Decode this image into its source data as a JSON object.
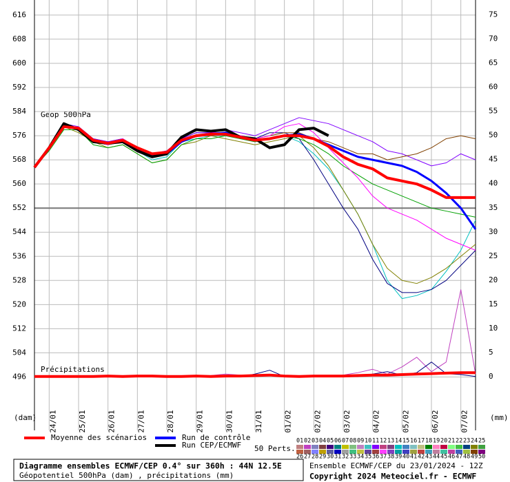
{
  "chart_data": {
    "type": "line",
    "title": "Diagramme ensembles ECMWF/CEP 0.4° sur 360h : 44N 12.5E",
    "subtitle": "Géopotentiel 500hPa (dam) , précipitations (mm)",
    "run_info": "Ensemble ECMWF/CEP du 23/01/2024 - 12Z",
    "copyright": "Copyright 2024 Meteociel.fr - ECMWF",
    "geop_label": "Geop 500hPa",
    "precip_label": "Précipitations",
    "y_label": "(dam)",
    "y2_label": "(mm)",
    "x": [
      0,
      12,
      24,
      36,
      48,
      60,
      72,
      84,
      96,
      108,
      120,
      132,
      144,
      156,
      168,
      180,
      192,
      204,
      216,
      228,
      240,
      252,
      264,
      276,
      288,
      300,
      312,
      324,
      336,
      348,
      360
    ],
    "xlim": [
      0,
      360
    ],
    "xticks": [
      {
        "value": 12,
        "label": "24/01"
      },
      {
        "value": 36,
        "label": "25/01"
      },
      {
        "value": 60,
        "label": "26/01"
      },
      {
        "value": 84,
        "label": "27/01"
      },
      {
        "value": 108,
        "label": "28/01"
      },
      {
        "value": 132,
        "label": "29/01"
      },
      {
        "value": 156,
        "label": "30/01"
      },
      {
        "value": 180,
        "label": "31/01"
      },
      {
        "value": 204,
        "label": "01/02"
      },
      {
        "value": 228,
        "label": "02/02"
      },
      {
        "value": 252,
        "label": "03/02"
      },
      {
        "value": 276,
        "label": "04/02"
      },
      {
        "value": 300,
        "label": "05/02"
      },
      {
        "value": 324,
        "label": "06/02"
      },
      {
        "value": 348,
        "label": "07/02"
      }
    ],
    "ylim": [
      484,
      621
    ],
    "yticks": [
      496,
      504,
      512,
      520,
      528,
      536,
      544,
      552,
      560,
      568,
      576,
      584,
      592,
      600,
      608,
      616
    ],
    "y2lim": [
      -7.6,
      78.1
    ],
    "y2ticks": [
      0,
      5,
      10,
      15,
      20,
      25,
      30,
      35,
      40,
      45,
      50,
      55,
      60,
      65,
      70,
      75
    ],
    "reference_line": 552,
    "grid": true,
    "series": [
      {
        "color": "#00c0c0",
        "values": [
          565.5,
          572,
          579,
          578,
          574,
          573,
          574,
          571,
          568,
          569,
          574,
          575,
          576,
          576,
          575,
          574,
          575,
          576,
          574,
          570,
          565,
          558,
          550,
          540,
          528,
          522,
          523,
          525,
          531,
          538,
          548
        ]
      },
      {
        "color": "#000080",
        "values": [
          565.5,
          572,
          580,
          578,
          575,
          574,
          575,
          572,
          569,
          570,
          575,
          577,
          577,
          577,
          576,
          575,
          577,
          577,
          575,
          568,
          560,
          552,
          545,
          535,
          527,
          524,
          524,
          525,
          528,
          533,
          538
        ]
      },
      {
        "color": "#808000",
        "values": [
          565.5,
          572,
          579,
          577,
          574,
          572,
          573,
          570,
          567,
          568,
          573,
          574,
          576,
          575,
          574,
          573,
          574,
          575,
          576,
          572,
          566,
          558,
          550,
          540,
          532,
          528,
          527,
          529,
          532,
          536,
          540
        ]
      },
      {
        "color": "#8000ff",
        "values": [
          565.5,
          572,
          580,
          579,
          575,
          574,
          575,
          572,
          570,
          571,
          575,
          577,
          577,
          578,
          577,
          576,
          578,
          580,
          582,
          581,
          580,
          578,
          576,
          574,
          571,
          570,
          568,
          566,
          567,
          570,
          568
        ]
      },
      {
        "color": "#804000",
        "values": [
          565.5,
          572,
          579,
          578,
          574,
          573,
          574,
          571,
          569,
          570,
          574,
          576,
          576,
          577,
          576,
          575,
          576,
          577,
          577,
          575,
          574,
          572,
          570,
          570,
          568,
          569,
          570,
          572,
          575,
          576,
          575
        ]
      },
      {
        "color": "#00a000",
        "values": [
          565.5,
          571,
          578,
          578,
          573,
          572,
          573,
          570,
          567,
          568,
          573,
          575,
          575,
          576,
          575,
          574,
          575,
          576,
          575,
          573,
          570,
          566,
          563,
          560,
          558,
          556,
          554,
          552,
          551,
          550,
          549
        ]
      },
      {
        "color": "#ff00ff",
        "values": [
          565.5,
          572,
          579,
          578,
          574,
          573,
          575,
          572,
          569,
          570,
          574,
          576,
          577,
          577,
          576,
          575,
          576,
          579,
          580,
          577,
          572,
          567,
          562,
          556,
          552,
          550,
          548,
          545,
          542,
          540,
          538
        ]
      },
      {
        "name": "Run de contrôle",
        "color": "#0000ff",
        "width": 3,
        "values": [
          565.5,
          572,
          579.5,
          578,
          574,
          573.5,
          574,
          571.5,
          569.5,
          570,
          574,
          576,
          576.5,
          577,
          575.5,
          574.5,
          575,
          576,
          576.5,
          575,
          573,
          571,
          569,
          568,
          567,
          566,
          564,
          561,
          557,
          552,
          545
        ]
      },
      {
        "name": "Run CEP/ECMWF",
        "color": "#000000",
        "width": 4,
        "values": [
          565.5,
          572,
          580,
          578,
          574,
          573.5,
          574,
          571,
          569,
          570,
          575.5,
          578,
          577.5,
          578,
          575.5,
          575,
          572,
          573,
          578,
          578.5,
          576,
          null,
          null,
          null,
          null,
          null,
          null,
          null,
          null,
          null,
          null
        ]
      },
      {
        "name": "Moyenne des scénarios",
        "color": "#ff0000",
        "width": 4,
        "values": [
          565.5,
          572,
          579,
          578.5,
          574.5,
          573.5,
          574.5,
          572,
          570,
          570.5,
          574.5,
          576,
          576.5,
          576.5,
          575.5,
          574.5,
          575,
          576,
          576,
          575,
          572.5,
          569,
          566.5,
          565,
          562,
          561,
          560,
          558,
          555.5,
          555.5,
          555.5
        ]
      },
      {
        "color": "#c040c0",
        "axis": "y2",
        "values": [
          0,
          0,
          0,
          0,
          0,
          0,
          0,
          0,
          0,
          0,
          0,
          0,
          0.2,
          0.5,
          0.3,
          0,
          0.4,
          0,
          0,
          0,
          0,
          0.3,
          0.8,
          1.5,
          0.5,
          2,
          4,
          1,
          3,
          18,
          0.5
        ]
      },
      {
        "color": "#000080",
        "axis": "y2",
        "values": [
          0,
          0,
          0,
          0,
          0,
          0,
          0,
          0,
          0,
          0,
          0,
          0,
          0,
          0,
          0,
          0.5,
          1.3,
          0,
          0,
          0,
          0,
          0,
          0,
          0.5,
          1,
          0.3,
          0.8,
          3,
          0.6,
          0.4,
          0
        ]
      },
      {
        "color": "#ff0000",
        "axis": "y2",
        "width": 4,
        "values": [
          0,
          0,
          0,
          0,
          0,
          0.1,
          0,
          0.1,
          0.1,
          0,
          0,
          0.1,
          0,
          0.1,
          0.1,
          0.2,
          0.3,
          0.1,
          0,
          0.1,
          0.1,
          0.1,
          0.2,
          0.3,
          0.3,
          0.4,
          0.5,
          0.6,
          0.7,
          0.8,
          0.8
        ]
      }
    ],
    "perts": {
      "title": "50 Perts.",
      "labels": [
        "01",
        "02",
        "03",
        "04",
        "05",
        "06",
        "07",
        "08",
        "09",
        "10",
        "11",
        "12",
        "13",
        "14",
        "15",
        "16",
        "17",
        "18",
        "19",
        "20",
        "21",
        "22",
        "23",
        "24",
        "25",
        "26",
        "27",
        "28",
        "29",
        "30",
        "31",
        "32",
        "33",
        "34",
        "35",
        "36",
        "37",
        "38",
        "39",
        "40",
        "41",
        "42",
        "43",
        "44",
        "45",
        "46",
        "47",
        "48",
        "49",
        "50"
      ],
      "colors": [
        "#c08080",
        "#c040c0",
        "#8080c0",
        "#804040",
        "#400080",
        "#008080",
        "#c0c000",
        "#80c080",
        "#c080c0",
        "#40c0c0",
        "#8000ff",
        "#c04080",
        "#804080",
        "#00c0c0",
        "#4080c0",
        "#80c0c0",
        "#c0c080",
        "#008000",
        "#ff80c0",
        "#c00040",
        "#80ff80",
        "#40c040",
        "#004080",
        "#808000",
        "#40a040",
        "#c06040",
        "#a06060",
        "#8080ff",
        "#c0a000",
        "#6060a0",
        "#0000c0",
        "#a0a0a0",
        "#40c080",
        "#c0c040",
        "#6040a0",
        "#a04040",
        "#ff40ff",
        "#8040c0",
        "#00a0a0",
        "#4040c0",
        "#a0a040",
        "#c04040",
        "#40a0c0",
        "#c080a0",
        "#40c0a0",
        "#c040a0",
        "#4060c0",
        "#a0c040",
        "#804000",
        "#800080"
      ]
    }
  }
}
